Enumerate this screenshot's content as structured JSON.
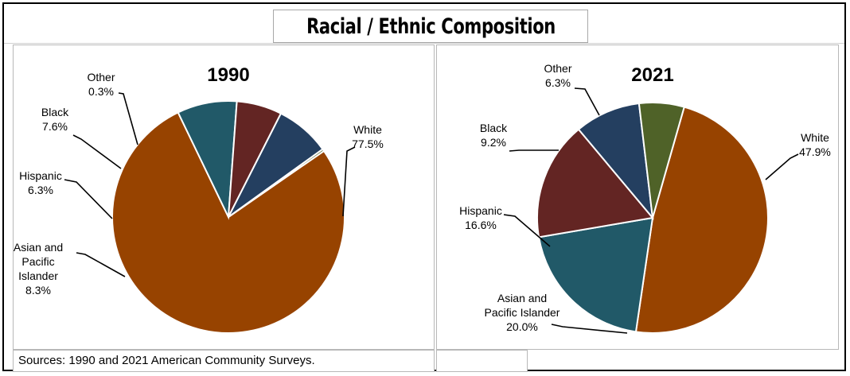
{
  "title": "Racial / Ethnic Composition",
  "source": "Sources:  1990 and 2021 American Community Surveys.",
  "colors": {
    "White": "#974300",
    "Asian and Pacific Islander": "#215968",
    "Hispanic": "#632523",
    "Black": "#243F60",
    "Other": "#4F6228"
  },
  "chart_data": [
    {
      "type": "pie",
      "title": "1990",
      "slices": [
        {
          "label": "White",
          "value": 77.5,
          "label_lines": [
            "White",
            "77.5%"
          ]
        },
        {
          "label": "Asian and Pacific Islander",
          "value": 8.3,
          "label_lines": [
            "Asian and",
            "Pacific",
            "Islander",
            "8.3%"
          ]
        },
        {
          "label": "Hispanic",
          "value": 6.3,
          "label_lines": [
            "Hispanic",
            "6.3%"
          ]
        },
        {
          "label": "Black",
          "value": 7.6,
          "label_lines": [
            "Black",
            "7.6%"
          ]
        },
        {
          "label": "Other",
          "value": 0.3,
          "label_lines": [
            "Other",
            "0.3%"
          ]
        }
      ]
    },
    {
      "type": "pie",
      "title": "2021",
      "slices": [
        {
          "label": "White",
          "value": 47.9,
          "label_lines": [
            "White",
            "47.9%"
          ]
        },
        {
          "label": "Asian and Pacific Islander",
          "value": 20.0,
          "label_lines": [
            "Asian and",
            "Pacific Islander",
            "20.0%"
          ]
        },
        {
          "label": "Hispanic",
          "value": 16.6,
          "label_lines": [
            "Hispanic",
            "16.6%"
          ]
        },
        {
          "label": "Black",
          "value": 9.2,
          "label_lines": [
            "Black",
            "9.2%"
          ]
        },
        {
          "label": "Other",
          "value": 6.3,
          "label_lines": [
            "Other",
            "6.3%"
          ]
        }
      ]
    }
  ]
}
